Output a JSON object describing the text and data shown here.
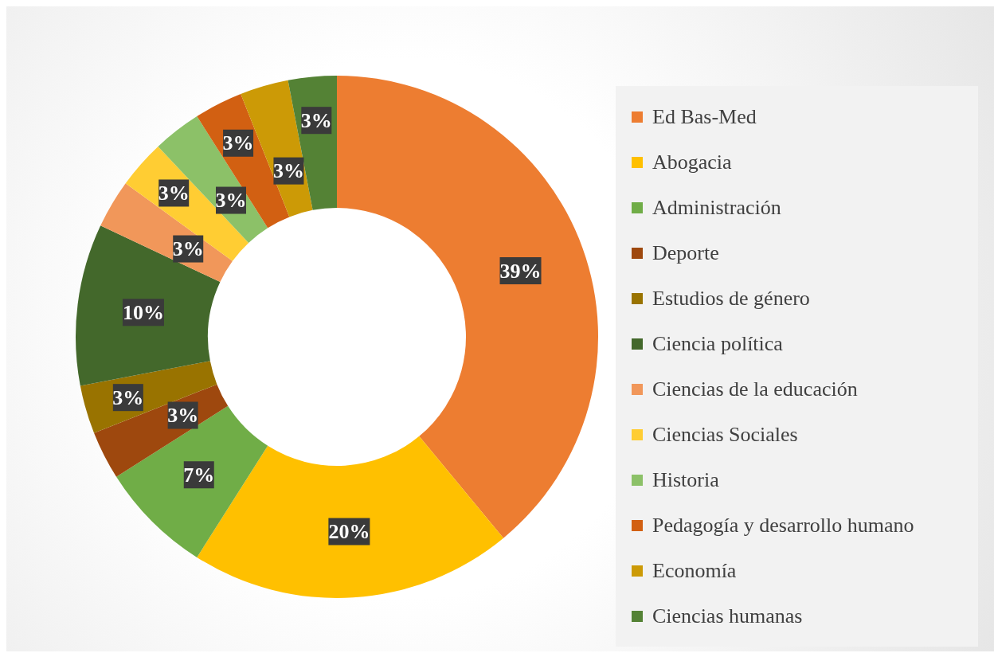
{
  "chart_data": {
    "type": "donut",
    "categories": [
      "Ed Bas-Med",
      "Abogacia",
      "Administración",
      "Deporte",
      "Estudios de género",
      "Ciencia política",
      "Ciencias de la educación",
      "Ciencias Sociales",
      "Historia",
      "Pedagogía y desarrollo humano",
      "Economía",
      "Ciencias humanas"
    ],
    "values": [
      39,
      20,
      7,
      3,
      3,
      10,
      3,
      3,
      3,
      3,
      3,
      3
    ],
    "value_labels": [
      "39%",
      "20%",
      "7%",
      "3%",
      "3%",
      "10%",
      "3%",
      "3%",
      "3%",
      "3%",
      "3%",
      "3%"
    ],
    "colors": [
      "#ed7d31",
      "#ffc000",
      "#70ad47",
      "#9e480e",
      "#997300",
      "#43682b",
      "#f1975a",
      "#ffcd33",
      "#8cc168",
      "#d26012",
      "#cc9a06",
      "#548235"
    ],
    "legend": "right"
  }
}
